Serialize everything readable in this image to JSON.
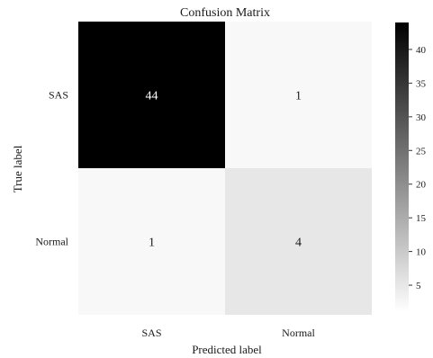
{
  "chart_data": {
    "type": "heatmap",
    "title": "Confusion Matrix",
    "xlabel": "Predicted label",
    "ylabel": "True label",
    "x_categories": [
      "SAS",
      "Normal"
    ],
    "y_categories": [
      "SAS",
      "Normal"
    ],
    "values": [
      [
        44,
        1
      ],
      [
        1,
        4
      ]
    ],
    "colormap": "Greys",
    "colorbar": {
      "min": 1,
      "max": 44,
      "ticks": [
        5,
        10,
        15,
        20,
        25,
        30,
        35,
        40
      ]
    }
  }
}
